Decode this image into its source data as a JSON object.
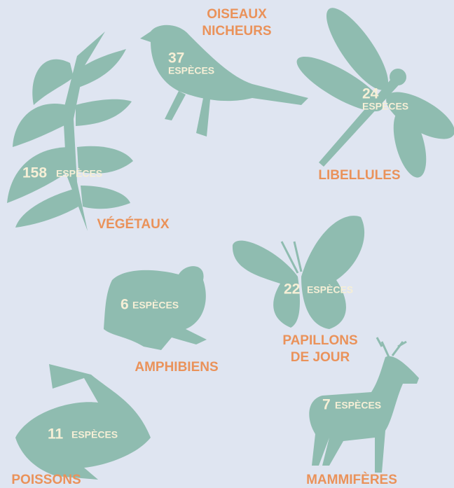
{
  "items": [
    {
      "label": [
        "OISEAUX",
        "NICHEURS"
      ],
      "count": 37,
      "unit": "ESPÈCES"
    },
    {
      "label": [
        "LIBELLULES"
      ],
      "count": 24,
      "unit": "ESPÈCES"
    },
    {
      "label": [
        "VÉGÉTAUX"
      ],
      "count": 158,
      "unit": "ESPÈCES"
    },
    {
      "label": [
        "PAPILLONS",
        "DE JOUR"
      ],
      "count": 22,
      "unit": "ESPÈCES"
    },
    {
      "label": [
        "AMPHIBIENS"
      ],
      "count": 6,
      "unit": "ESPÈCES"
    },
    {
      "label": [
        "POISSONS"
      ],
      "count": 11,
      "unit": "ESPÈCES"
    },
    {
      "label": [
        "MAMMIFÈRES"
      ],
      "count": 7,
      "unit": "ESPÈCES"
    }
  ]
}
